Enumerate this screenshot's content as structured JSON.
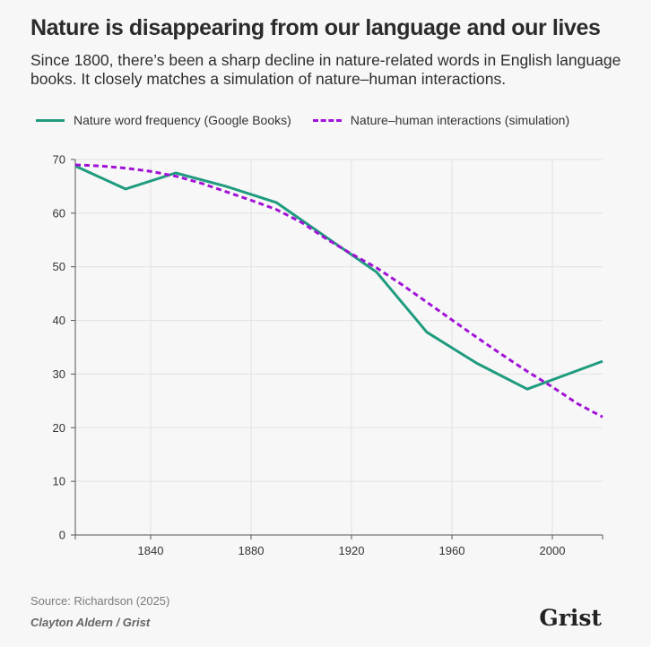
{
  "chart_data": {
    "type": "line",
    "title": "Nature is disappearing from our language and our lives",
    "subtitle": "Since 1800, there’s been a sharp decline in nature-related words in English language books. It closely matches a simulation of nature–human interactions.",
    "xlabel": "",
    "ylabel": "",
    "xlim": [
      1810,
      2020
    ],
    "ylim": [
      0,
      70
    ],
    "xticks": [
      1840,
      1880,
      1920,
      1960,
      2000
    ],
    "yticks": [
      0,
      10,
      20,
      30,
      40,
      50,
      60,
      70
    ],
    "grid": true,
    "legend": "top-left",
    "series": [
      {
        "name": "Nature word frequency (Google Books)",
        "color": "#1f9b7e",
        "style": "solid",
        "x": [
          1810,
          1830,
          1850,
          1870,
          1890,
          1910,
          1930,
          1950,
          1970,
          1990,
          2020
        ],
        "y": [
          68.8,
          64.5,
          67.5,
          65,
          62,
          55.5,
          49,
          37.8,
          32,
          27.2,
          32.4
        ]
      },
      {
        "name": "Nature–human interactions (simulation)",
        "color": "#a112d6",
        "style": "dashed",
        "x": [
          1810,
          1820,
          1830,
          1840,
          1850,
          1860,
          1870,
          1880,
          1890,
          1900,
          1910,
          1920,
          1930,
          1940,
          1950,
          1960,
          1970,
          1980,
          1990,
          2000,
          2010,
          2020
        ],
        "y": [
          69,
          68.8,
          68.4,
          67.8,
          66.9,
          65.6,
          64.0,
          62.4,
          60.7,
          58.3,
          55.2,
          52.4,
          49.8,
          46.7,
          43.4,
          40.1,
          36.8,
          33.6,
          30.5,
          27.6,
          24.5,
          22.0
        ]
      }
    ]
  },
  "source": "Source: Richardson (2025)",
  "credit": "Clayton Aldern / Grist",
  "logo": "Grist",
  "colors": {
    "background": "#f7f7f7",
    "axis": "#555555",
    "grid": "#e2e2e2"
  }
}
